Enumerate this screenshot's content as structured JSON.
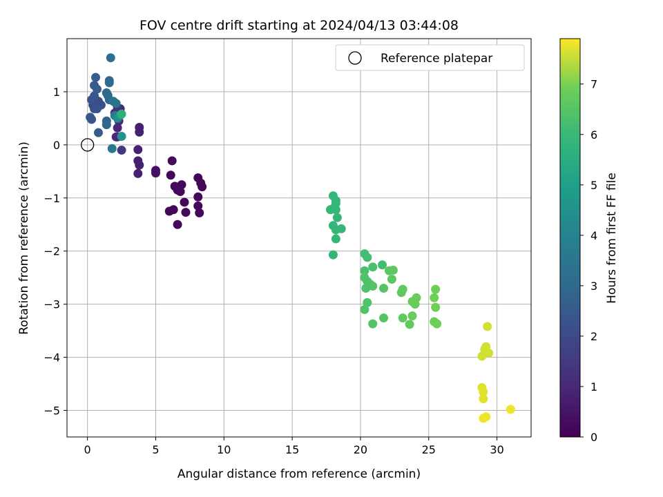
{
  "chart_data": {
    "type": "scatter",
    "title": "FOV centre drift starting at 2024/04/13 03:44:08",
    "xlabel": "Angular distance from reference (arcmin)",
    "ylabel": "Rotation from reference (arcmin)",
    "xlim": [
      -1.5,
      32.5
    ],
    "ylim": [
      -5.5,
      2.0
    ],
    "xticks": [
      0,
      5,
      10,
      15,
      20,
      25,
      30
    ],
    "yticks": [
      -5,
      -4,
      -3,
      -2,
      -1,
      0,
      1
    ],
    "grid": true,
    "legend": {
      "placement": "top-right",
      "entries": [
        "Reference platepar"
      ]
    },
    "reference_point": {
      "x": 0,
      "y": 0
    },
    "colorbar": {
      "label": "Hours from first FF file",
      "range": [
        0,
        7.9
      ],
      "ticks": [
        0,
        1,
        2,
        3,
        4,
        5,
        6,
        7
      ],
      "colormap": "viridis"
    },
    "series": [
      {
        "points": [
          {
            "x": 6.2,
            "y": -0.3,
            "c": 0.2
          },
          {
            "x": 6.1,
            "y": -0.57,
            "c": 0.2
          },
          {
            "x": 6.4,
            "y": -0.78,
            "c": 0.2
          },
          {
            "x": 6.9,
            "y": -0.75,
            "c": 0.2
          },
          {
            "x": 6.8,
            "y": -0.88,
            "c": 0.2
          },
          {
            "x": 6.6,
            "y": -0.85,
            "c": 0.2
          },
          {
            "x": 7.1,
            "y": -1.08,
            "c": 0.2
          },
          {
            "x": 6.3,
            "y": -1.22,
            "c": 0.2
          },
          {
            "x": 6.0,
            "y": -1.25,
            "c": 0.2
          },
          {
            "x": 7.2,
            "y": -1.27,
            "c": 0.2
          },
          {
            "x": 6.6,
            "y": -1.5,
            "c": 0.2
          },
          {
            "x": 8.1,
            "y": -0.62,
            "c": 0.15
          },
          {
            "x": 8.3,
            "y": -0.72,
            "c": 0.15
          },
          {
            "x": 8.4,
            "y": -0.79,
            "c": 0.15
          },
          {
            "x": 8.1,
            "y": -0.98,
            "c": 0.15
          },
          {
            "x": 8.1,
            "y": -1.15,
            "c": 0.15
          },
          {
            "x": 8.2,
            "y": -1.28,
            "c": 0.15
          },
          {
            "x": 5.0,
            "y": -0.48,
            "c": 0.4
          },
          {
            "x": 5.0,
            "y": -0.53,
            "c": 0.4
          },
          {
            "x": 3.8,
            "y": 0.33,
            "c": 0.8
          },
          {
            "x": 3.8,
            "y": 0.24,
            "c": 0.8
          },
          {
            "x": 3.7,
            "y": -0.09,
            "c": 0.8
          },
          {
            "x": 3.7,
            "y": -0.3,
            "c": 0.8
          },
          {
            "x": 3.8,
            "y": -0.38,
            "c": 0.8
          },
          {
            "x": 3.7,
            "y": -0.54,
            "c": 0.8
          },
          {
            "x": 2.5,
            "y": -0.1,
            "c": 1.5
          },
          {
            "x": 2.2,
            "y": 0.15,
            "c": 1.2
          },
          {
            "x": 2.1,
            "y": 0.15,
            "c": 1.0
          },
          {
            "x": 2.3,
            "y": 0.45,
            "c": 1.1
          },
          {
            "x": 2.2,
            "y": 0.32,
            "c": 1.0
          },
          {
            "x": 2.0,
            "y": 0.6,
            "c": 1.2
          },
          {
            "x": 2.4,
            "y": 0.68,
            "c": 0.9
          },
          {
            "x": 2.2,
            "y": 0.7,
            "c": 1.3
          },
          {
            "x": 0.3,
            "y": 0.85,
            "c": 2.3
          },
          {
            "x": 0.4,
            "y": 0.75,
            "c": 2.1
          },
          {
            "x": 0.5,
            "y": 0.68,
            "c": 2.2
          },
          {
            "x": 0.6,
            "y": 0.85,
            "c": 2.4
          },
          {
            "x": 0.8,
            "y": 0.82,
            "c": 2.0
          },
          {
            "x": 1.0,
            "y": 0.75,
            "c": 2.2
          },
          {
            "x": 0.7,
            "y": 0.68,
            "c": 2.3
          },
          {
            "x": 0.2,
            "y": 0.52,
            "c": 2.5
          },
          {
            "x": 0.3,
            "y": 0.48,
            "c": 2.4
          },
          {
            "x": 0.8,
            "y": 0.23,
            "c": 2.6
          },
          {
            "x": 0.5,
            "y": 1.12,
            "c": 2.5
          },
          {
            "x": 0.6,
            "y": 1.27,
            "c": 2.6
          },
          {
            "x": 0.7,
            "y": 1.05,
            "c": 2.6
          },
          {
            "x": 0.5,
            "y": 0.92,
            "c": 2.4
          },
          {
            "x": 1.4,
            "y": 0.45,
            "c": 2.8
          },
          {
            "x": 1.4,
            "y": 0.38,
            "c": 2.9
          },
          {
            "x": 1.6,
            "y": 0.85,
            "c": 2.9
          },
          {
            "x": 1.4,
            "y": 0.98,
            "c": 3.0
          },
          {
            "x": 1.5,
            "y": 0.93,
            "c": 3.0
          },
          {
            "x": 1.6,
            "y": 1.17,
            "c": 3.1
          },
          {
            "x": 1.6,
            "y": 1.21,
            "c": 3.0
          },
          {
            "x": 1.7,
            "y": 1.64,
            "c": 3.2
          },
          {
            "x": 1.8,
            "y": -0.07,
            "c": 3.5
          },
          {
            "x": 1.9,
            "y": 0.82,
            "c": 3.3
          },
          {
            "x": 2.1,
            "y": 0.78,
            "c": 3.4
          },
          {
            "x": 2.0,
            "y": 0.55,
            "c": 3.6
          },
          {
            "x": 2.2,
            "y": 0.5,
            "c": 4.2
          },
          {
            "x": 2.4,
            "y": 0.56,
            "c": 4.8
          },
          {
            "x": 2.5,
            "y": 0.58,
            "c": 5.6
          },
          {
            "x": 2.5,
            "y": 0.16,
            "c": 4.5
          },
          {
            "x": 18.0,
            "y": -0.96,
            "c": 5.9
          },
          {
            "x": 18.2,
            "y": -1.05,
            "c": 5.9
          },
          {
            "x": 18.2,
            "y": -1.1,
            "c": 5.9
          },
          {
            "x": 17.8,
            "y": -1.22,
            "c": 5.9
          },
          {
            "x": 18.0,
            "y": -1.2,
            "c": 5.9
          },
          {
            "x": 18.2,
            "y": -1.22,
            "c": 5.9
          },
          {
            "x": 18.3,
            "y": -1.37,
            "c": 5.9
          },
          {
            "x": 18.0,
            "y": -1.52,
            "c": 5.9
          },
          {
            "x": 18.2,
            "y": -1.6,
            "c": 5.9
          },
          {
            "x": 18.6,
            "y": -1.58,
            "c": 5.9
          },
          {
            "x": 18.2,
            "y": -1.77,
            "c": 5.9
          },
          {
            "x": 18.0,
            "y": -2.07,
            "c": 5.9
          },
          {
            "x": 20.3,
            "y": -2.05,
            "c": 6.2
          },
          {
            "x": 20.5,
            "y": -2.12,
            "c": 6.2
          },
          {
            "x": 21.6,
            "y": -2.26,
            "c": 6.2
          },
          {
            "x": 20.9,
            "y": -2.3,
            "c": 6.3
          },
          {
            "x": 20.3,
            "y": -2.37,
            "c": 6.3
          },
          {
            "x": 20.3,
            "y": -2.5,
            "c": 6.4
          },
          {
            "x": 20.5,
            "y": -2.57,
            "c": 6.4
          },
          {
            "x": 20.7,
            "y": -2.62,
            "c": 6.5
          },
          {
            "x": 20.6,
            "y": -2.65,
            "c": 6.4
          },
          {
            "x": 20.9,
            "y": -2.66,
            "c": 6.5
          },
          {
            "x": 20.4,
            "y": -2.7,
            "c": 6.4
          },
          {
            "x": 21.7,
            "y": -2.7,
            "c": 6.5
          },
          {
            "x": 22.1,
            "y": -2.37,
            "c": 6.6
          },
          {
            "x": 22.4,
            "y": -2.36,
            "c": 6.6
          },
          {
            "x": 22.3,
            "y": -2.53,
            "c": 6.6
          },
          {
            "x": 20.5,
            "y": -2.97,
            "c": 6.4
          },
          {
            "x": 20.3,
            "y": -3.1,
            "c": 6.4
          },
          {
            "x": 20.9,
            "y": -3.37,
            "c": 6.5
          },
          {
            "x": 21.7,
            "y": -3.26,
            "c": 6.5
          },
          {
            "x": 23.1,
            "y": -2.72,
            "c": 6.7
          },
          {
            "x": 23.0,
            "y": -2.78,
            "c": 6.7
          },
          {
            "x": 23.1,
            "y": -3.26,
            "c": 6.7
          },
          {
            "x": 23.6,
            "y": -3.38,
            "c": 6.7
          },
          {
            "x": 23.8,
            "y": -3.22,
            "c": 6.8
          },
          {
            "x": 23.8,
            "y": -2.95,
            "c": 6.8
          },
          {
            "x": 24.0,
            "y": -3.0,
            "c": 6.8
          },
          {
            "x": 24.1,
            "y": -2.88,
            "c": 6.8
          },
          {
            "x": 25.5,
            "y": -2.72,
            "c": 6.9
          },
          {
            "x": 25.4,
            "y": -2.88,
            "c": 6.9
          },
          {
            "x": 25.5,
            "y": -3.06,
            "c": 6.9
          },
          {
            "x": 25.4,
            "y": -3.33,
            "c": 6.9
          },
          {
            "x": 25.6,
            "y": -3.37,
            "c": 6.9
          },
          {
            "x": 29.3,
            "y": -3.42,
            "c": 7.6
          },
          {
            "x": 29.2,
            "y": -3.8,
            "c": 7.6
          },
          {
            "x": 29.1,
            "y": -3.85,
            "c": 7.6
          },
          {
            "x": 29.4,
            "y": -3.92,
            "c": 7.6
          },
          {
            "x": 28.9,
            "y": -3.98,
            "c": 7.6
          },
          {
            "x": 28.9,
            "y": -4.57,
            "c": 7.7
          },
          {
            "x": 29.0,
            "y": -4.65,
            "c": 7.7
          },
          {
            "x": 29.0,
            "y": -4.78,
            "c": 7.7
          },
          {
            "x": 31.0,
            "y": -4.98,
            "c": 7.8
          },
          {
            "x": 29.2,
            "y": -5.12,
            "c": 7.8
          },
          {
            "x": 29.0,
            "y": -5.15,
            "c": 7.8
          }
        ]
      }
    ]
  }
}
